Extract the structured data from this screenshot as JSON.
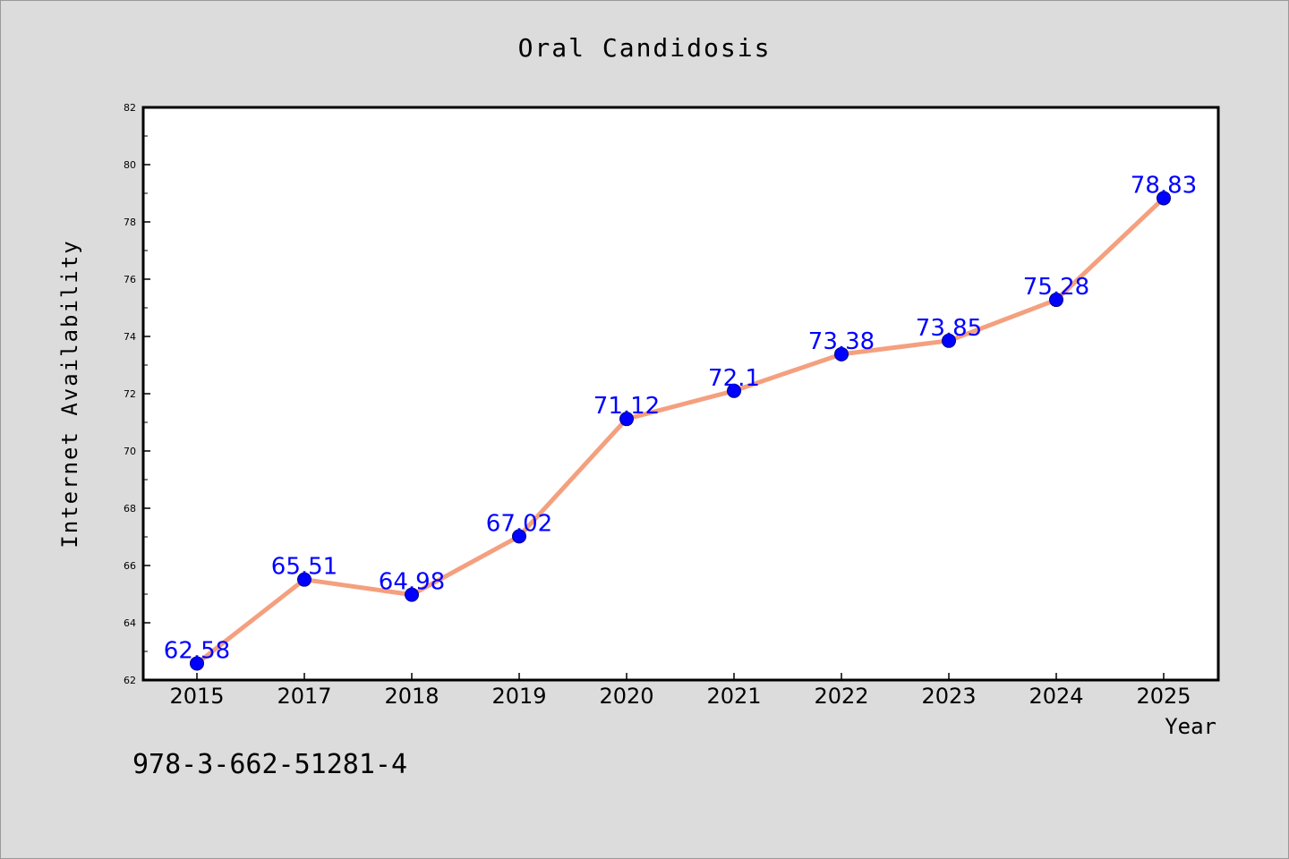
{
  "chart_data": {
    "type": "line",
    "title": "Oral Candidosis",
    "xlabel": "Year",
    "ylabel": "Internet Availability",
    "categories": [
      "2015",
      "2017",
      "2018",
      "2019",
      "2020",
      "2021",
      "2022",
      "2023",
      "2024",
      "2025"
    ],
    "series": [
      {
        "values": [
          62.58,
          65.51,
          64.98,
          67.02,
          71.12,
          72.1,
          73.38,
          73.85,
          75.28,
          78.83
        ],
        "labels": [
          "62.58",
          "65.51",
          "64.98",
          "67.02",
          "71.12",
          "72.1",
          "73.38",
          "73.85",
          "75.28",
          "78.83"
        ],
        "line_color": "#f4a07f",
        "marker_color": "#0000ff",
        "label_color": "#0000ff"
      }
    ],
    "ylim": [
      62,
      82
    ],
    "yticks": [
      "62",
      "64",
      "66",
      "68",
      "70",
      "72",
      "74",
      "76",
      "78",
      "80",
      "82"
    ],
    "grid": false,
    "legend": "none"
  },
  "annotation": "978-3-662-51281-4",
  "colors": {
    "page_background": "#dcdcdc",
    "plot_background": "#ffffff",
    "axis": "#000000"
  }
}
